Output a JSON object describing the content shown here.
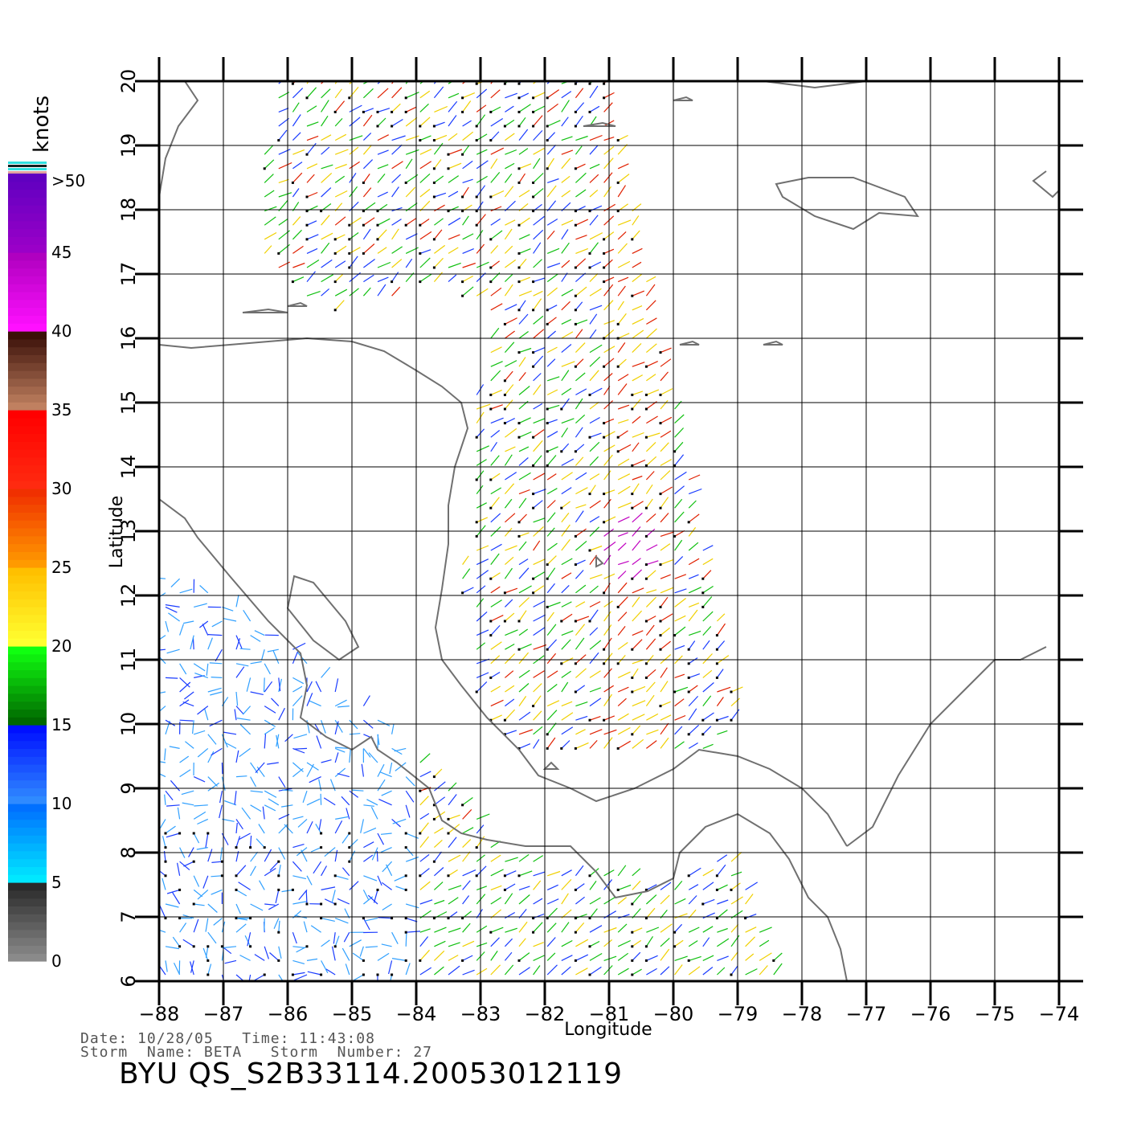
{
  "figure": {
    "x_axis_label": "Longitude",
    "y_axis_label": "Latitude",
    "lon_ticks": [
      -88,
      -87,
      -86,
      -85,
      -84,
      -83,
      -82,
      -81,
      -80,
      -79,
      -78,
      -77,
      -76,
      -75,
      -74
    ],
    "lat_ticks": [
      6,
      7,
      8,
      9,
      10,
      11,
      12,
      13,
      14,
      15,
      16,
      17,
      18,
      19,
      20
    ],
    "lon_range": [
      -88,
      -74
    ],
    "lat_range": [
      6,
      20
    ],
    "grid": true
  },
  "colorbar": {
    "units": "knots",
    "tick_labels": [
      "0",
      "5",
      "10",
      "15",
      "20",
      "25",
      "30",
      "35",
      "40",
      "45",
      ">50"
    ],
    "bands": [
      {
        "from": 0,
        "to": 5,
        "colors": [
          "#8a8a8a",
          "#2a2a2a"
        ]
      },
      {
        "from": 5,
        "to": 10,
        "colors": [
          "#00e8ff",
          "#0070ff"
        ]
      },
      {
        "from": 10,
        "to": 15,
        "colors": [
          "#2f8aff",
          "#0010ff"
        ]
      },
      {
        "from": 15,
        "to": 20,
        "colors": [
          "#006800",
          "#10ff10"
        ]
      },
      {
        "from": 20,
        "to": 25,
        "colors": [
          "#ffff30",
          "#ffc000"
        ]
      },
      {
        "from": 25,
        "to": 30,
        "colors": [
          "#ff9a00",
          "#f03000"
        ]
      },
      {
        "from": 30,
        "to": 35,
        "colors": [
          "#ff2a10",
          "#ff0000"
        ]
      },
      {
        "from": 35,
        "to": 40,
        "colors": [
          "#c08060",
          "#3a1008"
        ]
      },
      {
        "from": 40,
        "to": 45,
        "colors": [
          "#ff10ff",
          "#b000c0"
        ]
      },
      {
        "from": 45,
        "to": 50,
        "colors": [
          "#9a00c8",
          "#6000c0"
        ]
      }
    ]
  },
  "wind_field": {
    "description_colors": {
      "calm": "#1a3cff",
      "light": "#30a0ff",
      "moderate": "#10c010",
      "fresh": "#f0d000",
      "strong": "#e02000",
      "storm": "#c000c0"
    },
    "rain_flag_color": "#000000",
    "coastline_color": "#707070",
    "grid_color": "#000000"
  },
  "metadata": {
    "date_label": "Date:",
    "date": "10/28/05",
    "time_label": "Time:",
    "time": "11:43:08",
    "storm_name_label": "Storm  Name:",
    "storm_name": "BETA",
    "storm_number_label": "Storm  Number:",
    "storm_number": "27",
    "product_id": "BYU  QS_S2B33114.20053012119"
  }
}
